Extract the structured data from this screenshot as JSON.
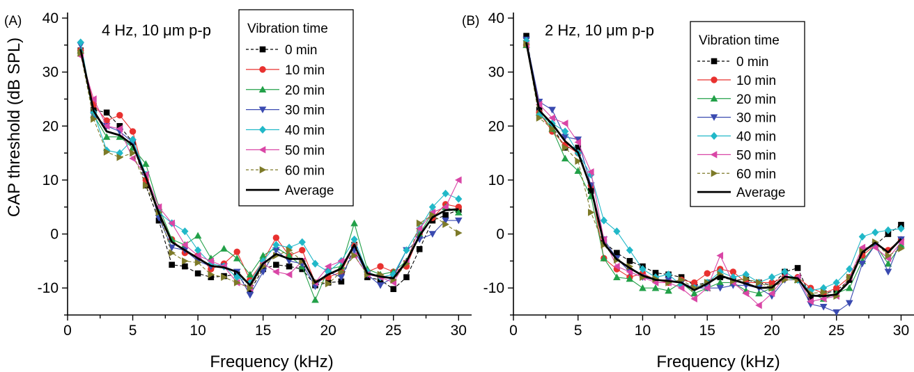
{
  "chart_data": [
    {
      "type": "line",
      "panel_label": "(A)",
      "condition_label": "4 Hz, 10 μm p-p",
      "xlabel": "Frequency (kHz)",
      "ylabel": "CAP threshold (dB SPL)",
      "xlim": [
        0,
        31
      ],
      "ylim": [
        -15,
        40
      ],
      "x_ticks": [
        "0",
        "5",
        "10",
        "15",
        "20",
        "25",
        "30"
      ],
      "y_ticks": [
        "-10",
        "0",
        "10",
        "20",
        "30",
        "40"
      ],
      "x_tick_values": [
        0,
        5,
        10,
        15,
        20,
        25,
        30
      ],
      "y_tick_values": [
        -10,
        0,
        10,
        20,
        30,
        40
      ],
      "legend_title": "Vibration time",
      "legend_position": "top-right",
      "x": [
        1,
        2,
        3,
        4,
        5,
        6,
        7,
        8,
        9,
        10,
        11,
        12,
        13,
        14,
        15,
        16,
        17,
        18,
        19,
        20,
        21,
        22,
        23,
        24,
        25,
        26,
        27,
        28,
        29,
        30
      ],
      "series": [
        {
          "name": "0 min",
          "color": "#000000",
          "marker": "square",
          "dashed": true,
          "values": [
            34,
            23,
            22.5,
            20,
            17,
            9,
            2.5,
            -5.7,
            -6,
            -7.3,
            -8,
            -7.8,
            -7.5,
            -10.5,
            -6.5,
            -5.7,
            -6,
            -6.5,
            -9.5,
            -9,
            -8.8,
            -2,
            -8,
            -8.5,
            -10.2,
            -8,
            -2.8,
            2.5,
            3.5,
            4.5
          ]
        },
        {
          "name": "10 min",
          "color": "#e8312f",
          "marker": "circle",
          "dashed": false,
          "values": [
            34,
            24,
            21,
            22,
            19,
            10,
            4,
            -1,
            -3.5,
            -4,
            -6.5,
            -5.5,
            -3.3,
            -8.5,
            -5,
            -0.7,
            -4,
            -3,
            -9,
            -8,
            -7,
            -2,
            -7,
            -6,
            -7,
            -6,
            0,
            3,
            5.5,
            5
          ]
        },
        {
          "name": "20 min",
          "color": "#22a048",
          "marker": "triangle-up",
          "dashed": false,
          "values": [
            34,
            22,
            18,
            18,
            16,
            13,
            5,
            -1,
            -2,
            -0.3,
            -4.5,
            -2.7,
            -4.5,
            -7.5,
            -4,
            -2.5,
            -4,
            -6,
            -12.2,
            -6.5,
            -6,
            2,
            -6.5,
            -7.5,
            -7,
            -5,
            0,
            4,
            5,
            4
          ]
        },
        {
          "name": "30 min",
          "color": "#3a4ab0",
          "marker": "triangle-down",
          "dashed": false,
          "values": [
            35,
            22,
            20,
            19,
            17,
            11,
            3,
            -2.5,
            -3,
            -5,
            -6,
            -6,
            -7,
            -11.3,
            -7,
            -3,
            -5,
            -5.5,
            -9.7,
            -7,
            -8,
            -3,
            -7.5,
            -9.5,
            -8,
            -3,
            -1,
            0,
            2.5,
            2.5
          ]
        },
        {
          "name": "40 min",
          "color": "#21b8c8",
          "marker": "diamond",
          "dashed": false,
          "values": [
            35.5,
            22.5,
            15.5,
            15,
            17.5,
            11,
            4,
            2,
            0.5,
            -3,
            -5.5,
            -6,
            -8,
            -9,
            -5,
            -2,
            -2.5,
            -1.5,
            -5.5,
            -7,
            -5,
            -1,
            -7,
            -8,
            -7.5,
            -3,
            1,
            5,
            7.5,
            6.5
          ]
        },
        {
          "name": "50 min",
          "color": "#d946a6",
          "marker": "triangle-left",
          "dashed": false,
          "values": [
            33,
            25,
            20,
            19.5,
            14,
            11,
            5,
            2,
            -2,
            -4,
            -5,
            -6,
            -9,
            -10,
            -5.5,
            -7,
            -7.5,
            -5,
            -9,
            -6,
            -5,
            -4,
            -7.5,
            -8,
            -9,
            -5,
            1,
            4,
            5,
            10
          ]
        },
        {
          "name": "60 min",
          "color": "#7d7a28",
          "marker": "triangle-right",
          "dashed": true,
          "values": [
            33.5,
            21.3,
            15.2,
            14.2,
            15,
            9,
            4,
            -3.5,
            -5,
            -5.3,
            -7.5,
            -8,
            -9,
            -10,
            -6,
            -4,
            -3,
            -5,
            -8.8,
            -9.2,
            -7,
            -4,
            -7.5,
            -7.5,
            -8.5,
            -5.5,
            2,
            3.5,
            1.8,
            0.2
          ]
        },
        {
          "name": "Average",
          "color": "#000000",
          "marker": "none",
          "dashed": false,
          "bold": true,
          "values": [
            34.2,
            22.8,
            19,
            18.3,
            16.5,
            10.6,
            3.9,
            -1.5,
            -3,
            -4.5,
            -5.9,
            -6.2,
            -7,
            -9.5,
            -5.5,
            -3.7,
            -4.6,
            -4.6,
            -9,
            -7.5,
            -6.4,
            -2,
            -7.3,
            -7.9,
            -8.2,
            -5.1,
            -0.3,
            3.1,
            4.4,
            4.6
          ]
        }
      ]
    },
    {
      "type": "line",
      "panel_label": "(B)",
      "condition_label": "2 Hz, 10 μm p-p",
      "xlabel": "Frequency (kHz)",
      "ylabel": "",
      "xlim": [
        0,
        31
      ],
      "ylim": [
        -15,
        40
      ],
      "x_ticks": [
        "0",
        "5",
        "10",
        "15",
        "20",
        "25",
        "30"
      ],
      "y_ticks": [
        "-10",
        "0",
        "10",
        "20",
        "30",
        "40"
      ],
      "x_tick_values": [
        0,
        5,
        10,
        15,
        20,
        25,
        30
      ],
      "y_tick_values": [
        -10,
        0,
        10,
        20,
        30,
        40
      ],
      "legend_title": "Vibration time",
      "legend_position": "top-right",
      "x": [
        1,
        2,
        3,
        4,
        5,
        6,
        7,
        8,
        9,
        10,
        11,
        12,
        13,
        14,
        15,
        16,
        17,
        18,
        19,
        20,
        21,
        22,
        23,
        24,
        25,
        26,
        27,
        28,
        29,
        30
      ],
      "series": [
        {
          "name": "0 min",
          "color": "#000000",
          "marker": "square",
          "dashed": true,
          "values": [
            36.7,
            23,
            20,
            16,
            16,
            8,
            -1.5,
            -3.5,
            -5,
            -6,
            -7.2,
            -7.5,
            -8,
            -9.5,
            -9,
            -8,
            -8.5,
            -8.5,
            -9,
            -9.5,
            -7,
            -6.3,
            -11.7,
            -11,
            -10.5,
            -8.5,
            -3,
            -2,
            0,
            1.7
          ]
        },
        {
          "name": "10 min",
          "color": "#e8312f",
          "marker": "circle",
          "dashed": false,
          "values": [
            35,
            22.5,
            19,
            16.5,
            15,
            9,
            -4.5,
            -6.5,
            -8,
            -7.3,
            -8.5,
            -9,
            -8.5,
            -9,
            -7.3,
            -6.5,
            -7,
            -9,
            -9,
            -9,
            -8,
            -8,
            -10,
            -11,
            -10,
            -8,
            -4,
            -2,
            -3,
            -1
          ]
        },
        {
          "name": "20 min",
          "color": "#22a048",
          "marker": "triangle-up",
          "dashed": false,
          "values": [
            35,
            22.5,
            19.5,
            14,
            11.7,
            7,
            -4.5,
            -8,
            -8.3,
            -10,
            -10,
            -10.5,
            -9,
            -11,
            -10,
            -9,
            -9,
            -10.5,
            -11,
            -10,
            -8,
            -8.5,
            -11,
            -12,
            -11,
            -10,
            -5,
            -2,
            -5.5,
            -2
          ]
        },
        {
          "name": "30 min",
          "color": "#3a4ab0",
          "marker": "triangle-down",
          "dashed": false,
          "values": [
            36,
            24.5,
            23,
            18,
            17.5,
            9,
            -1,
            -4.5,
            -7,
            -8,
            -8.5,
            -8.5,
            -9,
            -10,
            -10,
            -10,
            -9.5,
            -9.5,
            -10,
            -11.5,
            -8.5,
            -8.5,
            -13,
            -13.5,
            -14.5,
            -12.8,
            -5.5,
            -2,
            -7,
            -1
          ]
        },
        {
          "name": "40 min",
          "color": "#21b8c8",
          "marker": "diamond",
          "dashed": false,
          "values": [
            35.8,
            22,
            20.5,
            19,
            15,
            11,
            2.5,
            0.5,
            -3,
            -6.5,
            -8,
            -7.5,
            -9.5,
            -10,
            -9,
            -7,
            -8,
            -7.5,
            -9,
            -8,
            -7,
            -8.5,
            -10.5,
            -10,
            -9,
            -6.5,
            -0.5,
            0.3,
            0.7,
            1
          ]
        },
        {
          "name": "50 min",
          "color": "#d946a6",
          "marker": "triangle-left",
          "dashed": false,
          "values": [
            35,
            24,
            21.5,
            20.5,
            17,
            11.5,
            -1,
            -6,
            -7,
            -8,
            -9,
            -9,
            -10,
            -12,
            -10,
            -4,
            -9,
            -11,
            -13.2,
            -11,
            -8,
            -8,
            -12.5,
            -12,
            -11.5,
            -8,
            -2.5,
            -2.5,
            -4.5,
            -1.5
          ]
        },
        {
          "name": "60 min",
          "color": "#7d7a28",
          "marker": "triangle-right",
          "dashed": true,
          "values": [
            35.2,
            21.5,
            19.5,
            16,
            13.5,
            4,
            -2,
            -4.8,
            -6,
            -8,
            -8.3,
            -9,
            -8.5,
            -10,
            -9,
            -7.5,
            -8.7,
            -8.3,
            -9,
            -10,
            -8.5,
            -8.5,
            -11,
            -10.8,
            -11.5,
            -8,
            -3.2,
            -1.5,
            -4,
            -2.7
          ]
        },
        {
          "name": "Average",
          "color": "#000000",
          "marker": "none",
          "dashed": false,
          "bold": true,
          "values": [
            35.5,
            22.9,
            20.4,
            17.2,
            15.1,
            8.5,
            -1.7,
            -4.7,
            -6.3,
            -7.7,
            -8.5,
            -8.7,
            -9,
            -10.4,
            -9.2,
            -7.7,
            -8.5,
            -9.2,
            -10,
            -9.9,
            -7.9,
            -8.2,
            -11.4,
            -11.5,
            -11.2,
            -8.8,
            -3.4,
            -1.6,
            -3.4,
            -0.9
          ]
        }
      ]
    }
  ]
}
